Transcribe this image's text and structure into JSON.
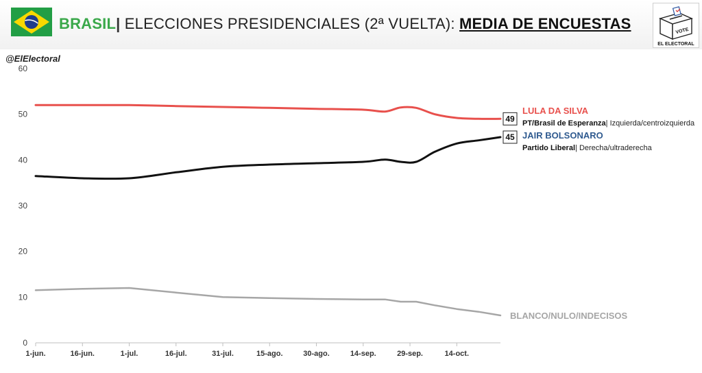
{
  "header": {
    "country": "BRASIL",
    "separator": "|",
    "title_mid": " ELECCIONES PRESIDENCIALES (2ª VUELTA): ",
    "title_emph": "MEDIA DE ENCUESTAS"
  },
  "handle": "@ElElectoral",
  "logo": {
    "vote_text": "VOTE",
    "brand": "EL ELECTORAL"
  },
  "chart_data": {
    "type": "line",
    "title": "",
    "xlabel": "",
    "ylabel": "",
    "ylim": [
      0,
      60
    ],
    "y_ticks": [
      "0",
      "10",
      "20",
      "30",
      "40",
      "50",
      "60"
    ],
    "x_ticks": [
      "1-jun.",
      "16-jun.",
      "1-jul.",
      "16-jul.",
      "31-jul.",
      "15-ago.",
      "30-ago.",
      "14-sep.",
      "29-sep.",
      "14-oct."
    ],
    "x": [
      "2022-06-01",
      "2022-06-16",
      "2022-07-01",
      "2022-07-16",
      "2022-07-31",
      "2022-08-15",
      "2022-08-30",
      "2022-09-14",
      "2022-09-21",
      "2022-09-26",
      "2022-10-01",
      "2022-10-07",
      "2022-10-14",
      "2022-10-21",
      "2022-10-28"
    ],
    "grid": false,
    "series": [
      {
        "name": "LULA DA SILVA",
        "party": "PT/Brasil de Esperanza",
        "desc": "Izquierda/centroizquierda",
        "color": "#e8504c",
        "end_label": "49",
        "values": [
          52,
          52,
          52,
          51.8,
          51.6,
          51.4,
          51.2,
          51,
          50.6,
          51.5,
          51.4,
          50,
          49.2,
          49,
          49
        ]
      },
      {
        "name": "JAIR BOLSONARO",
        "party": "Partido Liberal",
        "desc": "Derecha/ultraderecha",
        "color": "#111111",
        "label_color": "#2f5a8f",
        "end_label": "45",
        "values": [
          36.5,
          36,
          36,
          37.3,
          38.5,
          39,
          39.3,
          39.6,
          40.1,
          39.6,
          39.6,
          41.8,
          43.6,
          44.3,
          45
        ]
      },
      {
        "name": "BLANCO/NULO/INDECISOS",
        "color": "#a6a6a6",
        "values": [
          11.5,
          11.8,
          12,
          11,
          10,
          9.8,
          9.6,
          9.5,
          9.5,
          9,
          9,
          8.2,
          7.4,
          6.8,
          6
        ]
      }
    ]
  }
}
